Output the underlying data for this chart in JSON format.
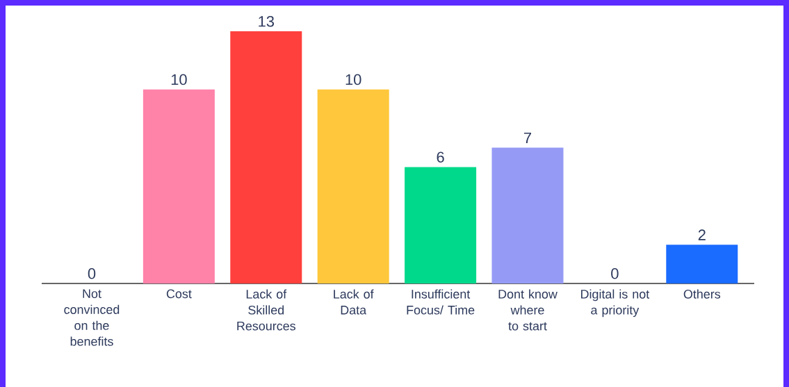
{
  "chart_data": {
    "type": "bar",
    "categories": [
      "Not convinced on the benefits",
      "Cost",
      "Lack of Skilled Resources",
      "Lack of Data",
      "Insufficient Focus/ Time",
      "Dont know where to start",
      "Digital is not a priority",
      "Others"
    ],
    "values": [
      0,
      10,
      13,
      10,
      6,
      7,
      0,
      2
    ],
    "colors": [
      "#ff82a9",
      "#ff82a9",
      "#ff403d",
      "#ffc73b",
      "#00d98b",
      "#959bf5",
      "#1a6bff",
      "#1a6bff"
    ],
    "data_labels": true
  }
}
